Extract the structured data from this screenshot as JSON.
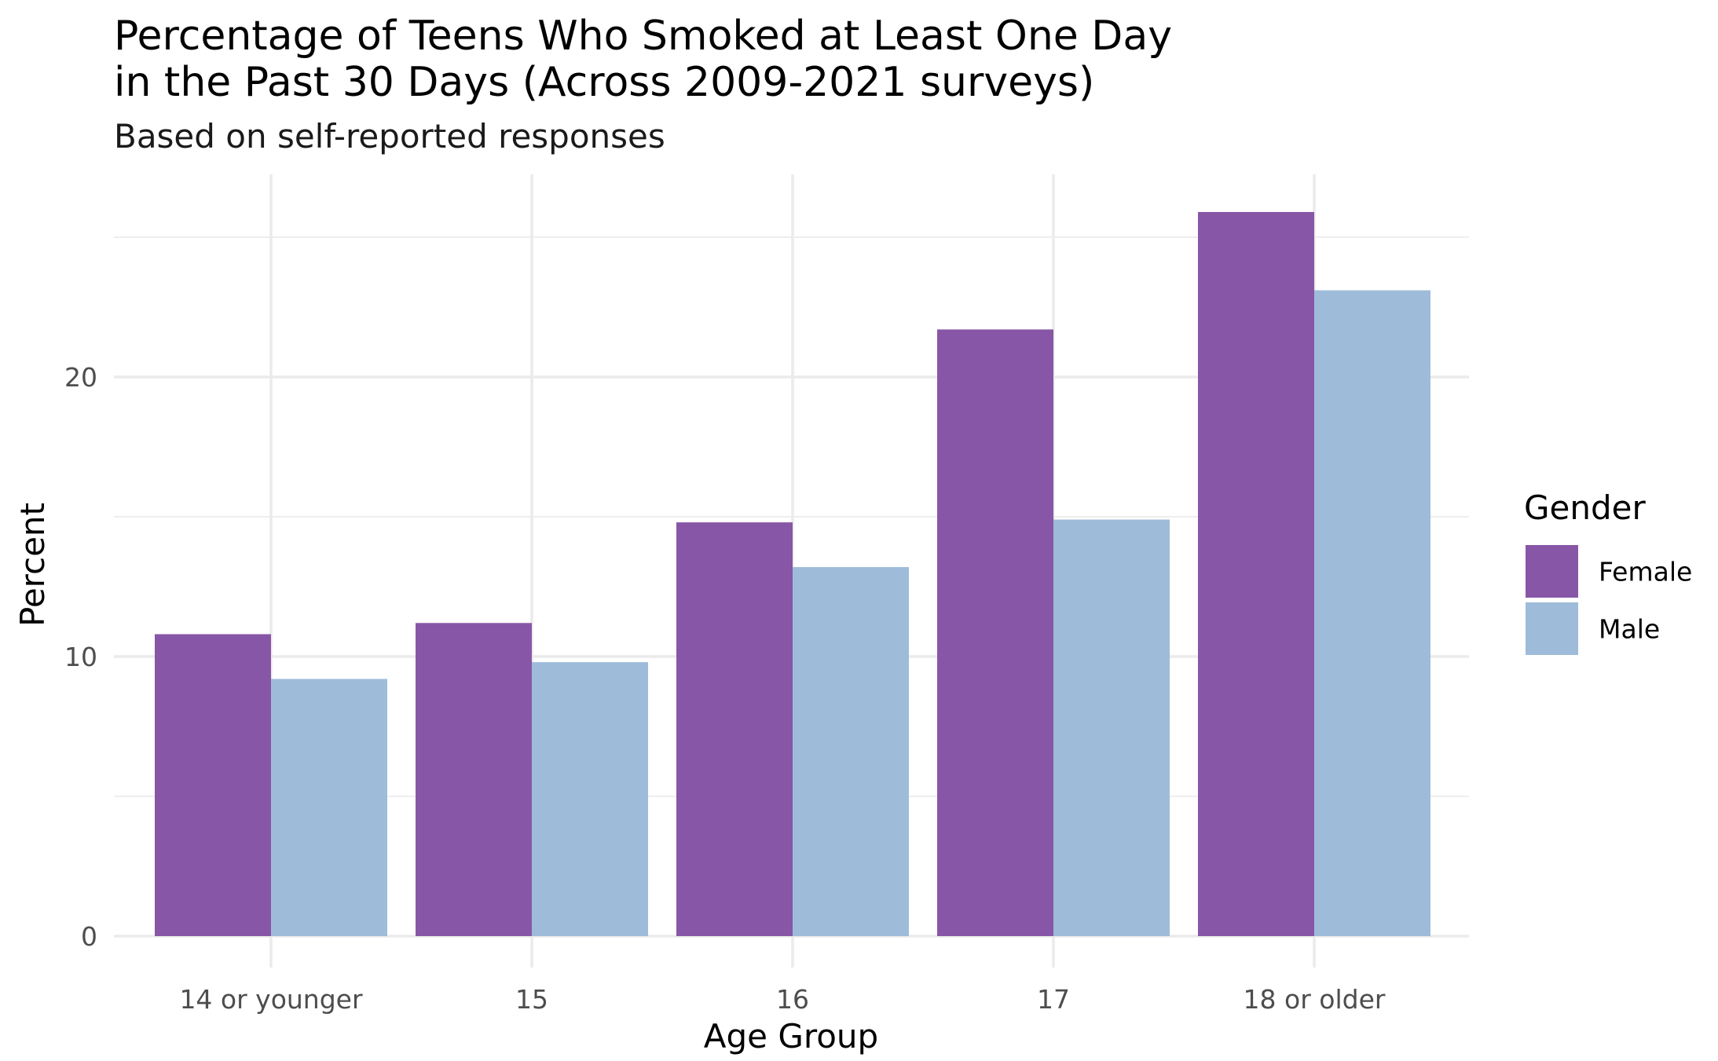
{
  "chart_data": {
    "type": "bar",
    "title_lines": [
      "Percentage of Teens Who Smoked at Least One Day",
      "in the Past 30 Days (Across 2009-2021 surveys)"
    ],
    "subtitle": "Based on self-reported responses",
    "xlabel": "Age Group",
    "ylabel": "Percent",
    "categories": [
      "14 or younger",
      "15",
      "16",
      "17",
      "18 or older"
    ],
    "series": [
      {
        "name": "Female",
        "color": "#8856a7",
        "values": [
          10.8,
          11.2,
          14.8,
          21.7,
          25.9
        ]
      },
      {
        "name": "Male",
        "color": "#9ebcda",
        "values": [
          9.2,
          9.8,
          13.2,
          14.9,
          23.1
        ]
      }
    ],
    "yticks": [
      0,
      10,
      20
    ],
    "ylim": [
      0,
      26.5
    ],
    "grid": true,
    "legend": {
      "title": "Gender",
      "position": "right"
    }
  }
}
